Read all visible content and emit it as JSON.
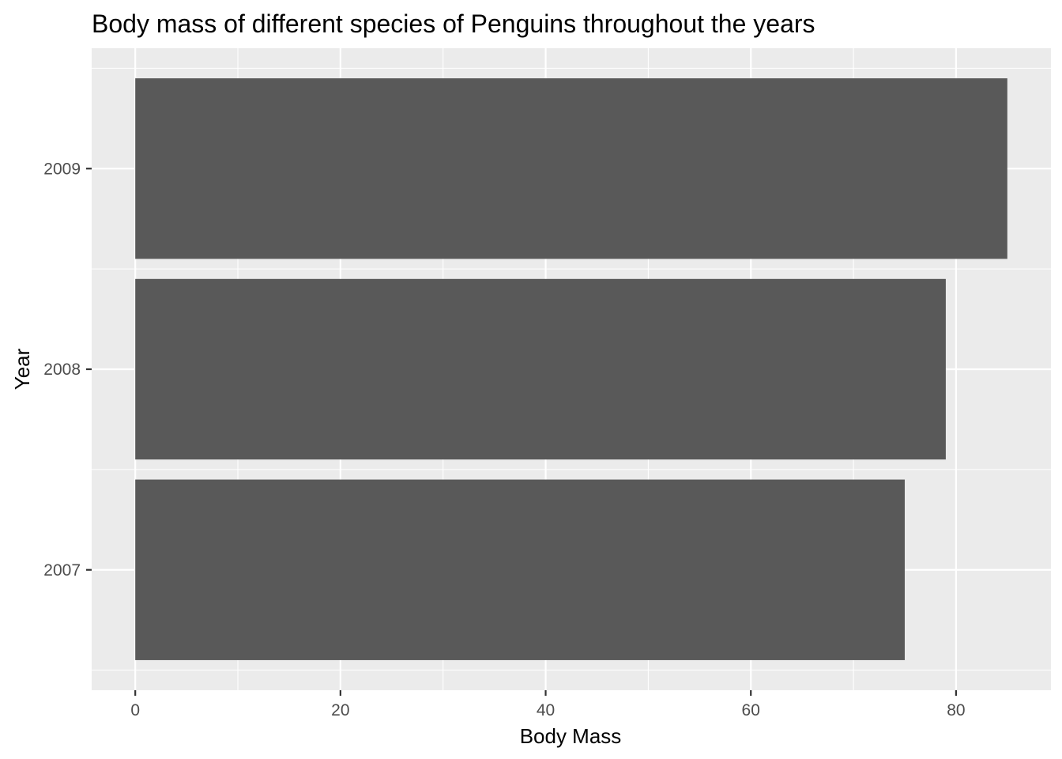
{
  "chart_data": {
    "type": "bar",
    "orientation": "horizontal",
    "title": "Body mass of different species of Penguins throughout the years",
    "xlabel": "Body Mass",
    "ylabel": "Year",
    "categories": [
      "2007",
      "2008",
      "2009"
    ],
    "values": [
      75,
      79,
      85
    ],
    "x_ticks": [
      "0",
      "20",
      "40",
      "60",
      "80"
    ],
    "xlim": [
      -4.25,
      89.25
    ],
    "grid": true,
    "legend": "none",
    "colors": {
      "bar": "#595959",
      "panel": "#ebebeb",
      "grid": "#ffffff"
    }
  }
}
